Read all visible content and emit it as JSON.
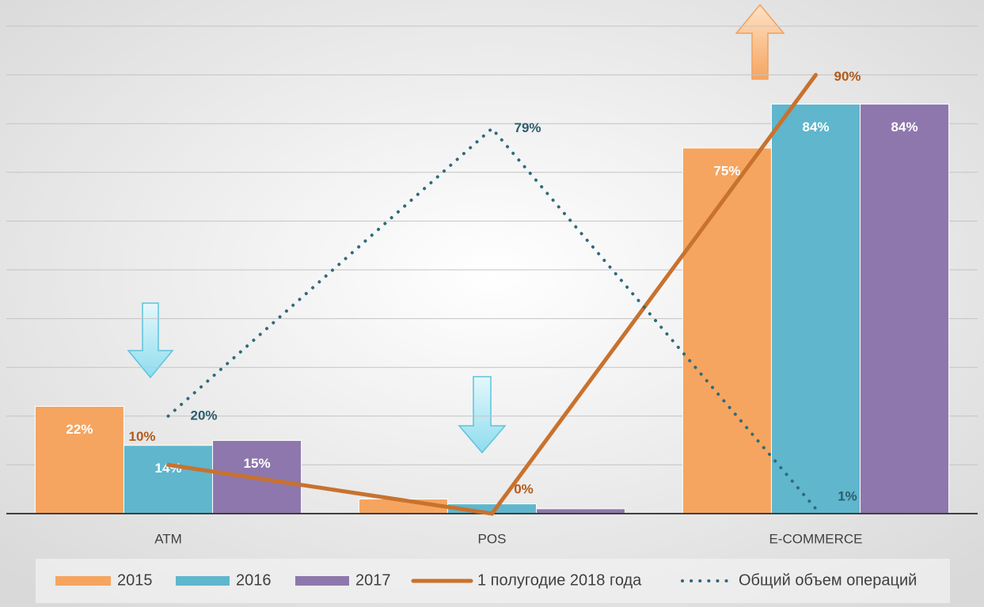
{
  "chart_data": {
    "type": "bar",
    "categories": [
      "ATM",
      "POS",
      "E-COMMERCE"
    ],
    "ylim": [
      0,
      100
    ],
    "yticks": [
      0,
      10,
      20,
      30,
      40,
      50,
      60,
      70,
      80,
      90,
      100
    ],
    "grid": true,
    "legend": "bottom",
    "series": [
      {
        "name": "2015",
        "type": "bar",
        "color": "#f5a55f",
        "values": [
          22,
          3,
          75
        ],
        "value_labels": [
          "22%",
          null,
          "75%"
        ]
      },
      {
        "name": "2016",
        "type": "bar",
        "color": "#5fb6cd",
        "values": [
          14,
          2,
          84
        ],
        "value_labels": [
          "14%",
          null,
          "84%"
        ]
      },
      {
        "name": "2017",
        "type": "bar",
        "color": "#8d77ad",
        "values": [
          15,
          1,
          84
        ],
        "value_labels": [
          "15%",
          null,
          "84%"
        ]
      },
      {
        "name": "1 полугодие 2018 года",
        "type": "line",
        "style": "solid",
        "color": "#c8722e",
        "values": [
          10,
          0,
          90
        ],
        "value_labels": [
          "10%",
          "0%",
          "90%"
        ]
      },
      {
        "name": "Общий объем операций",
        "type": "line",
        "style": "dotted",
        "color": "#2f6b7b",
        "values": [
          20,
          79,
          1
        ],
        "value_labels": [
          "20%",
          "79%",
          "1%"
        ]
      }
    ]
  }
}
